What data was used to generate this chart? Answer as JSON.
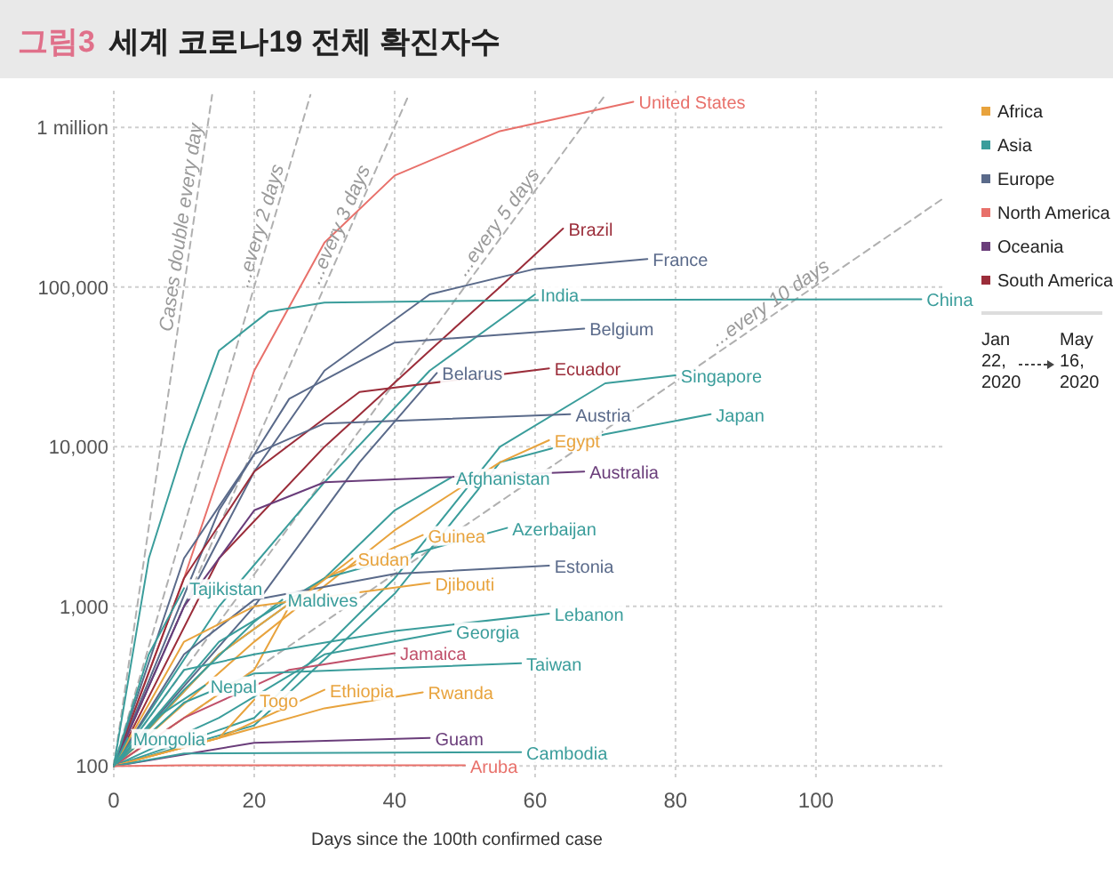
{
  "chart_data": [
    {
      "type": "line",
      "title": "그림3 세계 코로나19 전체 확진자수",
      "xlabel": "Days since the 100th confirmed case",
      "log": true,
      "grid": true,
      "xlim": [
        0,
        118
      ],
      "ylim": [
        85,
        1700000
      ],
      "xticks": [
        0,
        20,
        40,
        60,
        80,
        100
      ],
      "yticks": [
        {
          "value": 100,
          "label": "100"
        },
        {
          "value": 1000,
          "label": "1,000"
        },
        {
          "value": 10000,
          "label": "10,000"
        },
        {
          "value": 100000,
          "label": "100,000"
        },
        {
          "value": 1000000,
          "label": "1 million"
        }
      ],
      "series": [
        {
          "name": "Cases double every day",
          "color": "#b0b0b0",
          "line_style": "dashed",
          "x": [
            0,
            14
          ],
          "values": [
            100,
            1600000
          ]
        },
        {
          "name": "...every 2 days",
          "color": "#b0b0b0",
          "line_style": "dashed",
          "x": [
            0,
            28
          ],
          "values": [
            100,
            1600000
          ]
        },
        {
          "name": "...every 3 days",
          "color": "#b0b0b0",
          "line_style": "dashed",
          "x": [
            0,
            42
          ],
          "values": [
            100,
            1600000
          ]
        },
        {
          "name": "...every 5 days",
          "color": "#b0b0b0",
          "line_style": "dashed",
          "x": [
            0,
            70
          ],
          "values": [
            100,
            1600000
          ]
        },
        {
          "name": "...every 10 days",
          "color": "#b0b0b0",
          "line_style": "dashed",
          "x": [
            0,
            118
          ],
          "values": [
            100,
            356000
          ]
        },
        {
          "name": "United States",
          "color": "#e8706a",
          "x": [
            0,
            10,
            20,
            30,
            40,
            55,
            74
          ],
          "values": [
            100,
            1500,
            30000,
            190000,
            500000,
            950000,
            1450000
          ]
        },
        {
          "name": "Brazil",
          "color": "#9b2d3a",
          "x": [
            0,
            15,
            30,
            45,
            55,
            64
          ],
          "values": [
            100,
            2000,
            10000,
            40000,
            100000,
            233000
          ]
        },
        {
          "name": "France",
          "color": "#5a6a8a",
          "x": [
            0,
            10,
            20,
            30,
            45,
            60,
            76
          ],
          "values": [
            100,
            1000,
            7000,
            30000,
            90000,
            130000,
            150000
          ]
        },
        {
          "name": "India",
          "color": "#3a9d9b",
          "x": [
            0,
            15,
            30,
            45,
            60
          ],
          "values": [
            100,
            1000,
            6000,
            30000,
            90000
          ]
        },
        {
          "name": "China",
          "color": "#3a9d9b",
          "x": [
            0,
            5,
            10,
            15,
            22,
            30,
            60,
            115
          ],
          "values": [
            100,
            2000,
            10000,
            40000,
            70000,
            80000,
            83000,
            84000
          ]
        },
        {
          "name": "Belgium",
          "color": "#5a6a8a",
          "x": [
            0,
            15,
            25,
            40,
            67
          ],
          "values": [
            100,
            4000,
            20000,
            45000,
            55000
          ]
        },
        {
          "name": "Belarus",
          "color": "#5a6a8a",
          "x": [
            0,
            20,
            35,
            46
          ],
          "values": [
            100,
            1000,
            8000,
            29000
          ]
        },
        {
          "name": "Ecuador",
          "color": "#9b2d3a",
          "x": [
            0,
            10,
            20,
            35,
            62
          ],
          "values": [
            100,
            1500,
            7000,
            22000,
            31000
          ]
        },
        {
          "name": "Singapore",
          "color": "#3a9d9b",
          "x": [
            0,
            20,
            40,
            55,
            70,
            80
          ],
          "values": [
            100,
            200,
            1500,
            10000,
            25000,
            28000
          ]
        },
        {
          "name": "Austria",
          "color": "#5a6a8a",
          "x": [
            0,
            10,
            20,
            30,
            65
          ],
          "values": [
            100,
            2000,
            9000,
            14000,
            16000
          ]
        },
        {
          "name": "Japan",
          "color": "#3a9d9b",
          "x": [
            0,
            20,
            40,
            55,
            70,
            85
          ],
          "values": [
            100,
            180,
            1200,
            8000,
            12000,
            16000
          ]
        },
        {
          "name": "Egypt",
          "color": "#e8a33d",
          "x": [
            0,
            20,
            40,
            55,
            62
          ],
          "values": [
            100,
            600,
            3000,
            8000,
            11000
          ]
        },
        {
          "name": "Afghanistan",
          "color": "#3a9d9b",
          "x": [
            0,
            15,
            30,
            40,
            48
          ],
          "values": [
            100,
            500,
            1500,
            4000,
            6400
          ]
        },
        {
          "name": "Australia",
          "color": "#6a3d7a",
          "x": [
            0,
            10,
            20,
            30,
            67
          ],
          "values": [
            100,
            1000,
            4000,
            6000,
            7000
          ]
        },
        {
          "name": "Guinea",
          "color": "#e8a33d",
          "x": [
            0,
            15,
            30,
            44
          ],
          "values": [
            100,
            500,
            1500,
            2800
          ]
        },
        {
          "name": "Azerbaijan",
          "color": "#3a9d9b",
          "x": [
            0,
            15,
            30,
            56
          ],
          "values": [
            100,
            600,
            1500,
            3100
          ]
        },
        {
          "name": "Estonia",
          "color": "#5a6a8a",
          "x": [
            0,
            10,
            20,
            40,
            62
          ],
          "values": [
            100,
            500,
            1100,
            1600,
            1800
          ]
        },
        {
          "name": "Sudan",
          "color": "#e8a33d",
          "x": [
            0,
            20,
            25,
            34
          ],
          "values": [
            100,
            400,
            1000,
            2000
          ]
        },
        {
          "name": "Tajikistan",
          "color": "#3a9d9b",
          "x": [
            0,
            5,
            10
          ],
          "values": [
            100,
            500,
            1300
          ]
        },
        {
          "name": "Maldives",
          "color": "#3a9d9b",
          "x": [
            0,
            10,
            20,
            24
          ],
          "values": [
            100,
            300,
            800,
            1100
          ]
        },
        {
          "name": "Djibouti",
          "color": "#e8a33d",
          "x": [
            0,
            10,
            20,
            45
          ],
          "values": [
            100,
            600,
            1000,
            1400
          ]
        },
        {
          "name": "Lebanon",
          "color": "#3a9d9b",
          "x": [
            0,
            10,
            20,
            40,
            62
          ],
          "values": [
            100,
            400,
            500,
            700,
            900
          ]
        },
        {
          "name": "Georgia",
          "color": "#3a9d9b",
          "x": [
            0,
            15,
            30,
            48
          ],
          "values": [
            100,
            200,
            500,
            700
          ]
        },
        {
          "name": "Jamaica",
          "color": "#c0506a",
          "x": [
            0,
            10,
            25,
            40
          ],
          "values": [
            100,
            200,
            400,
            510
          ]
        },
        {
          "name": "Taiwan",
          "color": "#3a9d9b",
          "x": [
            0,
            10,
            20,
            58
          ],
          "values": [
            100,
            250,
            380,
            440
          ]
        },
        {
          "name": "Togo",
          "color": "#e8a33d",
          "x": [
            0,
            15,
            20
          ],
          "values": [
            100,
            150,
            260
          ]
        },
        {
          "name": "Ethiopia",
          "color": "#e8a33d",
          "x": [
            0,
            15,
            30
          ],
          "values": [
            100,
            150,
            300
          ]
        },
        {
          "name": "Rwanda",
          "color": "#e8a33d",
          "x": [
            0,
            15,
            30,
            44
          ],
          "values": [
            100,
            150,
            230,
            290
          ]
        },
        {
          "name": "Mongolia",
          "color": "#3a9d9b",
          "x": [
            0,
            2
          ],
          "values": [
            100,
            150
          ]
        },
        {
          "name": "Guam",
          "color": "#6a3d7a",
          "x": [
            0,
            20,
            45
          ],
          "values": [
            100,
            140,
            150
          ]
        },
        {
          "name": "Cambodia",
          "color": "#3a9d9b",
          "x": [
            0,
            10,
            58
          ],
          "values": [
            100,
            120,
            122
          ]
        },
        {
          "name": "Aruba",
          "color": "#e8706a",
          "x": [
            0,
            10,
            50
          ],
          "values": [
            100,
            101,
            101
          ]
        },
        {
          "name": "Nepal",
          "color": "#3a9d9b",
          "x": [
            0,
            6,
            13
          ],
          "values": [
            100,
            200,
            320
          ]
        }
      ]
    },
    {
      "type": "other",
      "categories": [
        "Africa",
        "Asia",
        "Europe",
        "North America",
        "Oceania",
        "South America"
      ],
      "colors": [
        "#e8a33d",
        "#3a9d9b",
        "#5a6a8a",
        "#e8706a",
        "#6a3d7a",
        "#9b2d3a"
      ],
      "annotations": [
        "Jan 22, 2020",
        "May 16, 2020"
      ]
    }
  ]
}
